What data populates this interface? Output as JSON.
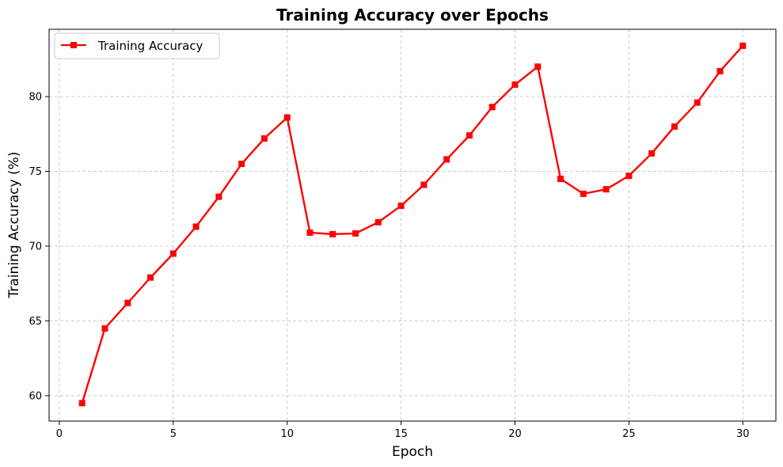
{
  "colors": {
    "series": "#ff0000",
    "grid": "#cccccc",
    "axis": "#000000"
  },
  "chart_data": {
    "type": "line",
    "title": "Training Accuracy over Epochs",
    "xlabel": "Epoch",
    "ylabel": "Training Accuracy (%)",
    "xlim": [
      -0.45,
      31.45
    ],
    "ylim": [
      58.3,
      84.5
    ],
    "xticks": [
      0,
      5,
      10,
      15,
      20,
      25,
      30
    ],
    "yticks": [
      60,
      65,
      70,
      75,
      80
    ],
    "grid": true,
    "legend_position": "top-left",
    "marker": "square",
    "series": [
      {
        "name": "Training Accuracy",
        "color": "#ff0000",
        "x": [
          1,
          2,
          3,
          4,
          5,
          6,
          7,
          8,
          9,
          10,
          11,
          12,
          13,
          14,
          15,
          16,
          17,
          18,
          19,
          20,
          21,
          22,
          23,
          24,
          25,
          26,
          27,
          28,
          29,
          30
        ],
        "y": [
          59.5,
          64.5,
          66.2,
          67.9,
          69.5,
          71.3,
          73.3,
          75.5,
          77.2,
          78.6,
          70.9,
          70.8,
          70.85,
          71.6,
          72.7,
          74.1,
          75.8,
          77.4,
          79.3,
          80.8,
          82.0,
          74.5,
          73.5,
          73.8,
          74.7,
          76.2,
          78.0,
          79.6,
          81.7,
          83.4
        ]
      }
    ]
  }
}
